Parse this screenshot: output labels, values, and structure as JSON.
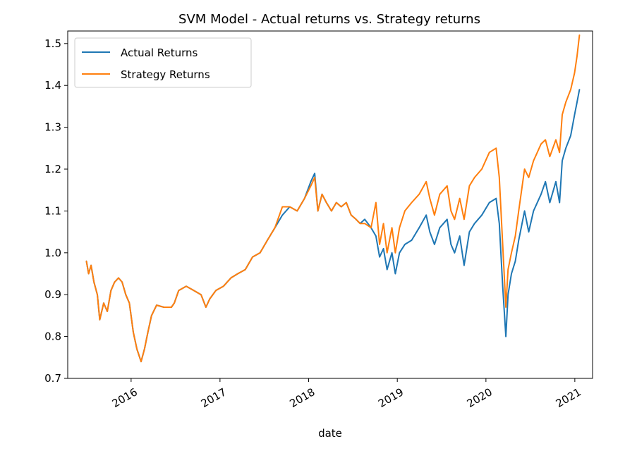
{
  "chart_data": {
    "type": "line",
    "title": "SVM Model - Actual returns vs. Strategy returns",
    "xlabel": "date",
    "ylabel": "",
    "ylim": [
      0.7,
      1.53
    ],
    "xlim": [
      "2015-04-15",
      "2021-03-15"
    ],
    "yticks": [
      "0.7",
      "0.8",
      "0.9",
      "1.0",
      "1.1",
      "1.2",
      "1.3",
      "1.4",
      "1.5"
    ],
    "xticks": [
      "2016",
      "2017",
      "2018",
      "2019",
      "2020",
      "2021"
    ],
    "grid": false,
    "legend_position": "top-left",
    "series": [
      {
        "name": "Actual Returns",
        "color": "#1f77b4",
        "points": [
          [
            "2015-07-01",
            0.98
          ],
          [
            "2015-07-10",
            0.95
          ],
          [
            "2015-07-20",
            0.97
          ],
          [
            "2015-08-01",
            0.93
          ],
          [
            "2015-08-15",
            0.9
          ],
          [
            "2015-08-25",
            0.84
          ],
          [
            "2015-09-10",
            0.88
          ],
          [
            "2015-09-25",
            0.86
          ],
          [
            "2015-10-10",
            0.91
          ],
          [
            "2015-10-25",
            0.93
          ],
          [
            "2015-11-10",
            0.94
          ],
          [
            "2015-11-25",
            0.93
          ],
          [
            "2015-12-10",
            0.9
          ],
          [
            "2015-12-25",
            0.88
          ],
          [
            "2016-01-10",
            0.81
          ],
          [
            "2016-01-25",
            0.77
          ],
          [
            "2016-02-11",
            0.74
          ],
          [
            "2016-02-25",
            0.77
          ],
          [
            "2016-03-10",
            0.81
          ],
          [
            "2016-03-25",
            0.85
          ],
          [
            "2016-04-15",
            0.875
          ],
          [
            "2016-05-15",
            0.87
          ],
          [
            "2016-06-15",
            0.87
          ],
          [
            "2016-06-27",
            0.88
          ],
          [
            "2016-07-15",
            0.91
          ],
          [
            "2016-08-15",
            0.92
          ],
          [
            "2016-09-15",
            0.91
          ],
          [
            "2016-10-15",
            0.9
          ],
          [
            "2016-11-04",
            0.87
          ],
          [
            "2016-11-20",
            0.89
          ],
          [
            "2016-12-15",
            0.91
          ],
          [
            "2017-01-15",
            0.92
          ],
          [
            "2017-02-15",
            0.94
          ],
          [
            "2017-03-15",
            0.95
          ],
          [
            "2017-04-15",
            0.96
          ],
          [
            "2017-05-15",
            0.99
          ],
          [
            "2017-06-15",
            1.0
          ],
          [
            "2017-07-15",
            1.03
          ],
          [
            "2017-08-15",
            1.06
          ],
          [
            "2017-09-15",
            1.09
          ],
          [
            "2017-10-15",
            1.11
          ],
          [
            "2017-11-15",
            1.1
          ],
          [
            "2017-12-15",
            1.13
          ],
          [
            "2018-01-10",
            1.17
          ],
          [
            "2018-01-26",
            1.19
          ],
          [
            "2018-02-08",
            1.1
          ],
          [
            "2018-02-25",
            1.14
          ],
          [
            "2018-03-15",
            1.12
          ],
          [
            "2018-04-05",
            1.1
          ],
          [
            "2018-04-25",
            1.12
          ],
          [
            "2018-05-15",
            1.11
          ],
          [
            "2018-06-05",
            1.12
          ],
          [
            "2018-06-25",
            1.09
          ],
          [
            "2018-07-15",
            1.08
          ],
          [
            "2018-08-01",
            1.07
          ],
          [
            "2018-08-20",
            1.08
          ],
          [
            "2018-09-15",
            1.06
          ],
          [
            "2018-10-05",
            1.04
          ],
          [
            "2018-10-20",
            0.99
          ],
          [
            "2018-11-05",
            1.01
          ],
          [
            "2018-11-20",
            0.96
          ],
          [
            "2018-12-10",
            1.0
          ],
          [
            "2018-12-24",
            0.95
          ],
          [
            "2019-01-10",
            1.0
          ],
          [
            "2019-02-01",
            1.02
          ],
          [
            "2019-03-01",
            1.03
          ],
          [
            "2019-04-01",
            1.06
          ],
          [
            "2019-04-30",
            1.09
          ],
          [
            "2019-05-15",
            1.05
          ],
          [
            "2019-06-03",
            1.02
          ],
          [
            "2019-06-25",
            1.06
          ],
          [
            "2019-07-25",
            1.08
          ],
          [
            "2019-08-10",
            1.02
          ],
          [
            "2019-08-25",
            1.0
          ],
          [
            "2019-09-15",
            1.04
          ],
          [
            "2019-10-03",
            0.97
          ],
          [
            "2019-10-25",
            1.05
          ],
          [
            "2019-11-15",
            1.07
          ],
          [
            "2019-12-15",
            1.09
          ],
          [
            "2020-01-15",
            1.12
          ],
          [
            "2020-02-12",
            1.13
          ],
          [
            "2020-02-25",
            1.07
          ],
          [
            "2020-03-10",
            0.92
          ],
          [
            "2020-03-23",
            0.8
          ],
          [
            "2020-04-01",
            0.9
          ],
          [
            "2020-04-15",
            0.95
          ],
          [
            "2020-05-01",
            0.98
          ],
          [
            "2020-05-15",
            1.03
          ],
          [
            "2020-06-08",
            1.1
          ],
          [
            "2020-06-25",
            1.05
          ],
          [
            "2020-07-15",
            1.1
          ],
          [
            "2020-08-15",
            1.14
          ],
          [
            "2020-09-02",
            1.17
          ],
          [
            "2020-09-20",
            1.12
          ],
          [
            "2020-10-15",
            1.17
          ],
          [
            "2020-10-30",
            1.12
          ],
          [
            "2020-11-10",
            1.22
          ],
          [
            "2020-11-25",
            1.25
          ],
          [
            "2020-12-15",
            1.28
          ],
          [
            "2020-12-31",
            1.33
          ],
          [
            "2021-01-10",
            1.36
          ],
          [
            "2021-01-20",
            1.39
          ]
        ]
      },
      {
        "name": "Strategy Returns",
        "color": "#ff7f0e",
        "points": [
          [
            "2015-07-01",
            0.98
          ],
          [
            "2015-07-10",
            0.95
          ],
          [
            "2015-07-20",
            0.97
          ],
          [
            "2015-08-01",
            0.93
          ],
          [
            "2015-08-15",
            0.9
          ],
          [
            "2015-08-25",
            0.84
          ],
          [
            "2015-09-10",
            0.88
          ],
          [
            "2015-09-25",
            0.86
          ],
          [
            "2015-10-10",
            0.91
          ],
          [
            "2015-10-25",
            0.93
          ],
          [
            "2015-11-10",
            0.94
          ],
          [
            "2015-11-25",
            0.93
          ],
          [
            "2015-12-10",
            0.9
          ],
          [
            "2015-12-25",
            0.88
          ],
          [
            "2016-01-10",
            0.81
          ],
          [
            "2016-01-25",
            0.77
          ],
          [
            "2016-02-11",
            0.74
          ],
          [
            "2016-02-25",
            0.77
          ],
          [
            "2016-03-10",
            0.81
          ],
          [
            "2016-03-25",
            0.85
          ],
          [
            "2016-04-15",
            0.875
          ],
          [
            "2016-05-15",
            0.87
          ],
          [
            "2016-06-15",
            0.87
          ],
          [
            "2016-06-27",
            0.88
          ],
          [
            "2016-07-15",
            0.91
          ],
          [
            "2016-08-15",
            0.92
          ],
          [
            "2016-09-15",
            0.91
          ],
          [
            "2016-10-15",
            0.9
          ],
          [
            "2016-11-04",
            0.87
          ],
          [
            "2016-11-20",
            0.89
          ],
          [
            "2016-12-15",
            0.91
          ],
          [
            "2017-01-15",
            0.92
          ],
          [
            "2017-02-15",
            0.94
          ],
          [
            "2017-03-15",
            0.95
          ],
          [
            "2017-04-15",
            0.96
          ],
          [
            "2017-05-15",
            0.99
          ],
          [
            "2017-06-15",
            1.0
          ],
          [
            "2017-07-15",
            1.03
          ],
          [
            "2017-08-15",
            1.06
          ],
          [
            "2017-09-15",
            1.11
          ],
          [
            "2017-10-15",
            1.11
          ],
          [
            "2017-11-15",
            1.1
          ],
          [
            "2017-12-15",
            1.13
          ],
          [
            "2018-01-10",
            1.16
          ],
          [
            "2018-01-26",
            1.18
          ],
          [
            "2018-02-08",
            1.1
          ],
          [
            "2018-02-25",
            1.14
          ],
          [
            "2018-03-15",
            1.12
          ],
          [
            "2018-04-05",
            1.1
          ],
          [
            "2018-04-25",
            1.12
          ],
          [
            "2018-05-15",
            1.11
          ],
          [
            "2018-06-05",
            1.12
          ],
          [
            "2018-06-25",
            1.09
          ],
          [
            "2018-07-15",
            1.08
          ],
          [
            "2018-08-01",
            1.07
          ],
          [
            "2018-08-20",
            1.07
          ],
          [
            "2018-09-15",
            1.06
          ],
          [
            "2018-10-05",
            1.12
          ],
          [
            "2018-10-20",
            1.02
          ],
          [
            "2018-11-05",
            1.07
          ],
          [
            "2018-11-20",
            1.0
          ],
          [
            "2018-12-10",
            1.06
          ],
          [
            "2018-12-24",
            1.0
          ],
          [
            "2019-01-10",
            1.06
          ],
          [
            "2019-02-01",
            1.1
          ],
          [
            "2019-03-01",
            1.12
          ],
          [
            "2019-04-01",
            1.14
          ],
          [
            "2019-04-30",
            1.17
          ],
          [
            "2019-05-15",
            1.13
          ],
          [
            "2019-06-03",
            1.09
          ],
          [
            "2019-06-25",
            1.14
          ],
          [
            "2019-07-25",
            1.16
          ],
          [
            "2019-08-10",
            1.1
          ],
          [
            "2019-08-25",
            1.08
          ],
          [
            "2019-09-15",
            1.13
          ],
          [
            "2019-10-03",
            1.08
          ],
          [
            "2019-10-25",
            1.16
          ],
          [
            "2019-11-15",
            1.18
          ],
          [
            "2019-12-15",
            1.2
          ],
          [
            "2020-01-15",
            1.24
          ],
          [
            "2020-02-12",
            1.25
          ],
          [
            "2020-02-25",
            1.18
          ],
          [
            "2020-03-10",
            1.02
          ],
          [
            "2020-03-23",
            0.87
          ],
          [
            "2020-04-01",
            0.96
          ],
          [
            "2020-04-15",
            1.0
          ],
          [
            "2020-05-01",
            1.04
          ],
          [
            "2020-05-15",
            1.1
          ],
          [
            "2020-06-08",
            1.2
          ],
          [
            "2020-06-25",
            1.18
          ],
          [
            "2020-07-15",
            1.22
          ],
          [
            "2020-08-15",
            1.26
          ],
          [
            "2020-09-02",
            1.27
          ],
          [
            "2020-09-20",
            1.23
          ],
          [
            "2020-10-15",
            1.27
          ],
          [
            "2020-10-30",
            1.24
          ],
          [
            "2020-11-10",
            1.33
          ],
          [
            "2020-11-25",
            1.36
          ],
          [
            "2020-12-15",
            1.39
          ],
          [
            "2020-12-31",
            1.43
          ],
          [
            "2021-01-10",
            1.47
          ],
          [
            "2021-01-20",
            1.52
          ]
        ]
      }
    ]
  }
}
